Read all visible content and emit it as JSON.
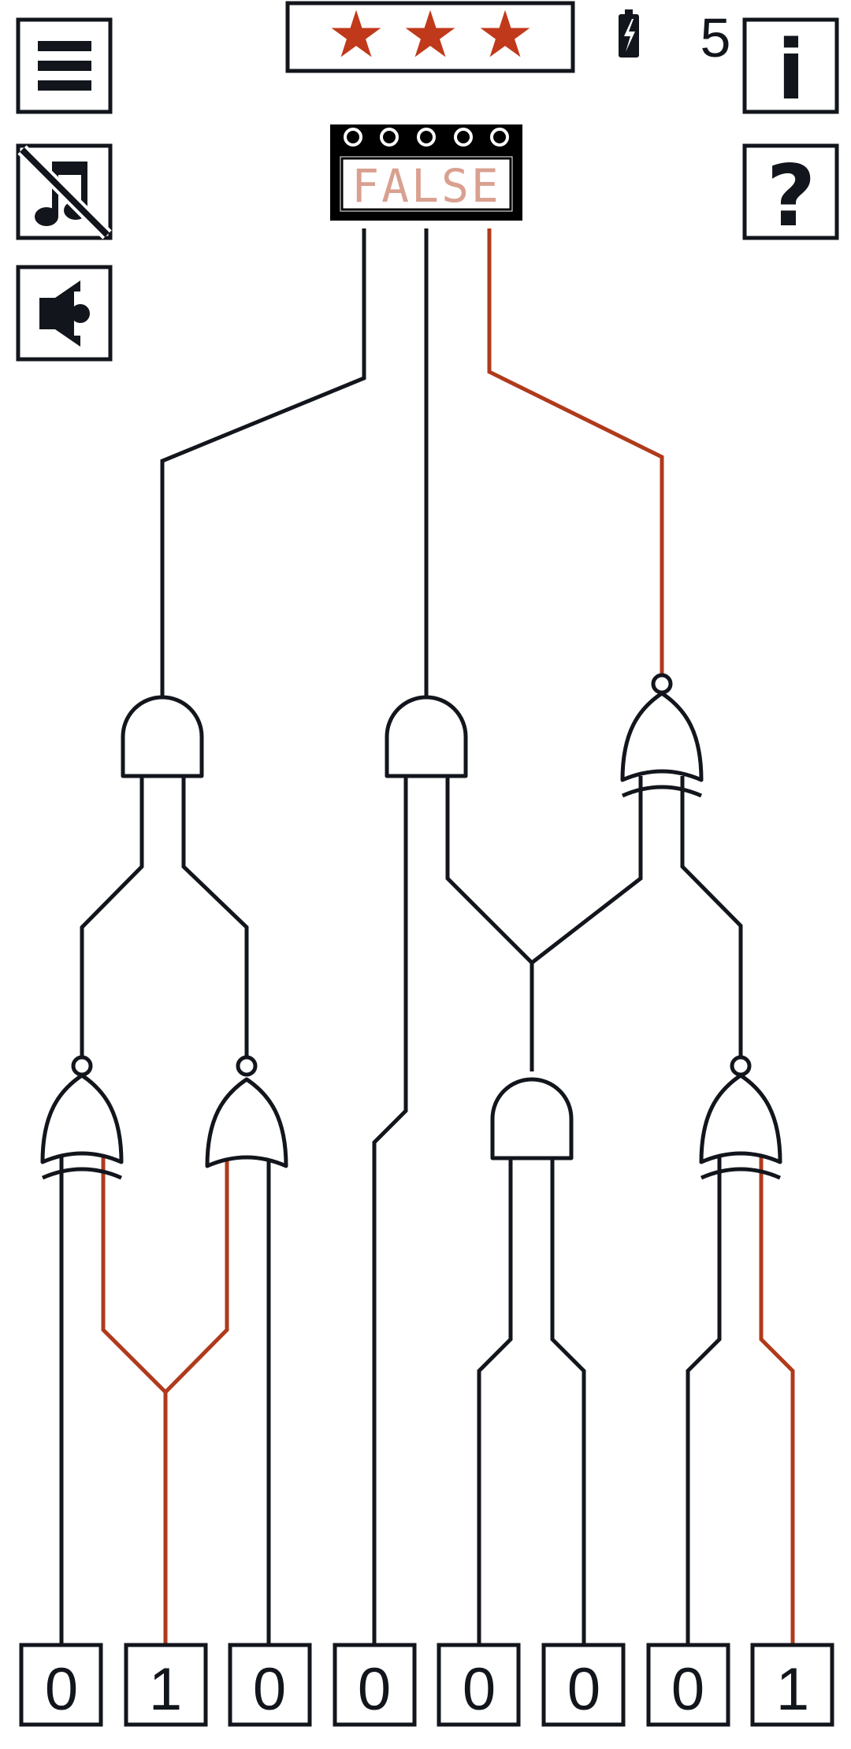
{
  "hud": {
    "stars": [
      "★",
      "★",
      "★"
    ],
    "battery_count": "5"
  },
  "toolbar": {
    "menu_icon": "hamburger-menu-icon",
    "music_icon": "music-muted-icon",
    "sound_icon": "speaker-icon",
    "info_label": "i",
    "help_label": "?"
  },
  "output": {
    "display_text": "FALSE",
    "indicator_count": 5
  },
  "inputs": [
    {
      "label": "0",
      "value": 0
    },
    {
      "label": "1",
      "value": 1
    },
    {
      "label": "0",
      "value": 0
    },
    {
      "label": "0",
      "value": 0
    },
    {
      "label": "0",
      "value": 0
    },
    {
      "label": "0",
      "value": 0
    },
    {
      "label": "0",
      "value": 0
    },
    {
      "label": "1",
      "value": 1
    }
  ],
  "gates": [
    {
      "id": "and-top-left",
      "type": "AND"
    },
    {
      "id": "and-top-middle",
      "type": "AND"
    },
    {
      "id": "xnor-top-right",
      "type": "XNOR"
    },
    {
      "id": "xnor-bottom-1",
      "type": "XNOR"
    },
    {
      "id": "xnor-bottom-2",
      "type": "XNOR"
    },
    {
      "id": "and-bottom-3",
      "type": "AND"
    },
    {
      "id": "xnor-bottom-4",
      "type": "XNOR"
    }
  ],
  "colors": {
    "wire_off": "#12161c",
    "wire_on": "#b03a1c",
    "star": "#c0391b",
    "display_text": "#d9a090",
    "ink": "#12161c"
  }
}
